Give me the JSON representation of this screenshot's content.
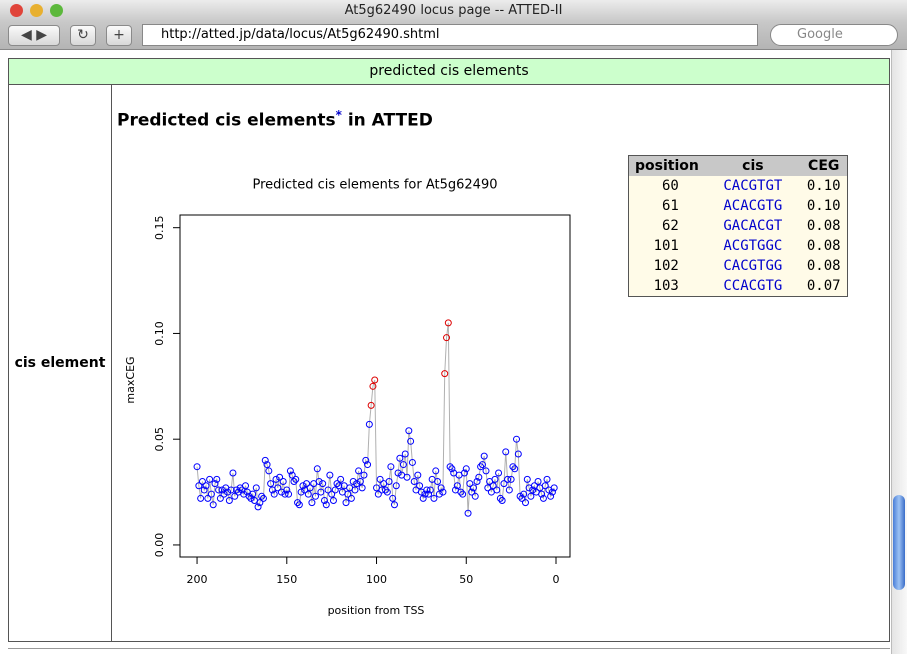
{
  "window": {
    "title": "At5g62490 locus page -- ATTED-II",
    "url": "http://atted.jp/data/locus/At5g62490.shtml",
    "search_placeholder": "Google"
  },
  "section": {
    "header": "predicted cis elements",
    "row_label": "cis element",
    "heading": "Predicted cis elements",
    "heading_mark": "*",
    "heading_suffix": "in ATTED"
  },
  "table": {
    "header": [
      "position",
      "cis",
      "CEG"
    ],
    "rows": [
      [
        60,
        "CACGTGT",
        "0.10"
      ],
      [
        61,
        "ACACGTG",
        "0.10"
      ],
      [
        62,
        "GACACGT",
        "0.08"
      ],
      [
        101,
        "ACGTGGC",
        "0.08"
      ],
      [
        102,
        "CACGTGG",
        "0.08"
      ],
      [
        103,
        "CCACGTG",
        "0.07"
      ]
    ]
  },
  "chart_data": {
    "type": "scatter",
    "title": "Predicted cis elements for At5g62490",
    "x_label": "position from TSS",
    "y_label": "maxCEG",
    "color": "#0000ff",
    "line_color": "#b0b0b0",
    "highlight_color": "#dd0000",
    "xlim": [
      209.5,
      -7.8
    ],
    "ylim": [
      -0.0057,
      0.156
    ],
    "xticks": [
      200,
      150,
      100,
      50,
      0
    ],
    "yticks": [
      {
        "value": 0,
        "label": "0.00"
      },
      {
        "value": 0.05,
        "label": "0.05"
      },
      {
        "value": 0.1,
        "label": "0.10"
      },
      {
        "value": 0.15,
        "label": "0.15"
      }
    ],
    "x": [
      200,
      199,
      198,
      197,
      196,
      195,
      194,
      193,
      192,
      191,
      190,
      189,
      188,
      187,
      186,
      185,
      184,
      183,
      182,
      181,
      180,
      179,
      178,
      177,
      176,
      175,
      174,
      173,
      172,
      171,
      170,
      169,
      168,
      167,
      166,
      165,
      164,
      163,
      162,
      161,
      160,
      159,
      158,
      157,
      156,
      155,
      154,
      153,
      152,
      151,
      150,
      149,
      148,
      147,
      146,
      145,
      144,
      143,
      142,
      141,
      140,
      139,
      138,
      137,
      136,
      135,
      134,
      133,
      132,
      131,
      130,
      129,
      128,
      127,
      126,
      125,
      124,
      123,
      122,
      121,
      120,
      119,
      118,
      117,
      116,
      115,
      114,
      113,
      112,
      111,
      110,
      109,
      108,
      107,
      106,
      105,
      104,
      103,
      102,
      101,
      100,
      99,
      98,
      97,
      96,
      95,
      94,
      93,
      92,
      91,
      90,
      89,
      88,
      87,
      86,
      85,
      84,
      83,
      82,
      81,
      80,
      79,
      78,
      77,
      76,
      75,
      74,
      73,
      72,
      71,
      70,
      69,
      68,
      67,
      66,
      65,
      64,
      63,
      62,
      61,
      60,
      59,
      58,
      57,
      56,
      55,
      54,
      53,
      52,
      51,
      50,
      49,
      48,
      47,
      46,
      45,
      44,
      43,
      42,
      41,
      40,
      39,
      38,
      37,
      36,
      35,
      34,
      33,
      32,
      31,
      30,
      29,
      28,
      27,
      26,
      25,
      24,
      23,
      22,
      21,
      20,
      19,
      18,
      17,
      16,
      15,
      14,
      13,
      12,
      11,
      10,
      9,
      8,
      7,
      6,
      5,
      4,
      3,
      2,
      1
    ],
    "values": [
      0.037,
      0.028,
      0.022,
      0.03,
      0.026,
      0.028,
      0.022,
      0.031,
      0.024,
      0.019,
      0.029,
      0.031,
      0.026,
      0.022,
      0.026,
      0.024,
      0.027,
      0.025,
      0.021,
      0.026,
      0.034,
      0.023,
      0.026,
      0.025,
      0.027,
      0.026,
      0.024,
      0.028,
      0.025,
      0.023,
      0.022,
      0.024,
      0.021,
      0.027,
      0.018,
      0.02,
      0.023,
      0.022,
      0.04,
      0.038,
      0.035,
      0.029,
      0.026,
      0.024,
      0.031,
      0.027,
      0.032,
      0.025,
      0.03,
      0.024,
      0.026,
      0.024,
      0.035,
      0.033,
      0.03,
      0.031,
      0.02,
      0.019,
      0.025,
      0.028,
      0.026,
      0.029,
      0.024,
      0.027,
      0.02,
      0.029,
      0.023,
      0.036,
      0.03,
      0.025,
      0.029,
      0.021,
      0.019,
      0.026,
      0.033,
      0.024,
      0.021,
      0.026,
      0.029,
      0.028,
      0.031,
      0.025,
      0.028,
      0.02,
      0.024,
      0.027,
      0.022,
      0.03,
      0.026,
      0.029,
      0.035,
      0.03,
      0.027,
      0.033,
      0.04,
      0.038,
      0.057,
      0.066,
      0.075,
      0.078,
      0.027,
      0.024,
      0.031,
      0.026,
      0.029,
      0.026,
      0.025,
      0.03,
      0.037,
      0.022,
      0.019,
      0.028,
      0.034,
      0.041,
      0.033,
      0.038,
      0.043,
      0.032,
      0.054,
      0.049,
      0.039,
      0.03,
      0.026,
      0.033,
      0.028,
      0.025,
      0.022,
      0.024,
      0.026,
      0.024,
      0.026,
      0.031,
      0.022,
      0.035,
      0.03,
      0.024,
      0.027,
      0.025,
      0.081,
      0.098,
      0.105,
      0.037,
      0.036,
      0.034,
      0.026,
      0.028,
      0.033,
      0.025,
      0.024,
      0.034,
      0.036,
      0.015,
      0.029,
      0.025,
      0.027,
      0.023,
      0.03,
      0.032,
      0.037,
      0.038,
      0.042,
      0.035,
      0.027,
      0.03,
      0.025,
      0.028,
      0.031,
      0.026,
      0.034,
      0.022,
      0.021,
      0.029,
      0.044,
      0.031,
      0.026,
      0.031,
      0.037,
      0.036,
      0.05,
      0.043,
      0.023,
      0.022,
      0.024,
      0.02,
      0.031,
      0.027,
      0.023,
      0.026,
      0.028,
      0.025,
      0.03,
      0.027,
      0.024,
      0.022,
      0.028,
      0.031,
      0.026,
      0.023,
      0.025,
      0.027
    ]
  }
}
